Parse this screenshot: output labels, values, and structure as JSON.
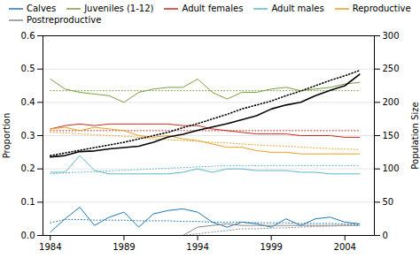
{
  "chart_data": {
    "type": "line",
    "x": [
      1984,
      1985,
      1986,
      1987,
      1988,
      1989,
      1990,
      1991,
      1992,
      1993,
      1994,
      1995,
      1996,
      1997,
      1998,
      1999,
      2000,
      2001,
      2002,
      2003,
      2004,
      2005
    ],
    "xlim": [
      1983.5,
      2006.0
    ],
    "xticks": [
      1984,
      1989,
      1994,
      1999,
      2004
    ],
    "ylim": [
      0.0,
      0.6
    ],
    "yticks": [
      {
        "value": 0.0,
        "label": "0.0"
      },
      0.1,
      0.2,
      0.3,
      0.4,
      0.5,
      0.6
    ],
    "y2lim": [
      0,
      300
    ],
    "y2ticks": [
      0,
      50,
      100,
      150,
      200,
      250,
      300
    ],
    "ylabel": "Proportion",
    "y2label": "Population Size",
    "grid": true,
    "legend": "upper-left",
    "series": [
      {
        "name": "Calves",
        "color": "#1F77B4",
        "line_style": "solid",
        "values": [
          0.01,
          0.05,
          0.085,
          0.03,
          0.055,
          0.07,
          0.025,
          0.065,
          0.075,
          0.08,
          0.07,
          0.04,
          0.025,
          0.04,
          0.035,
          0.025,
          0.05,
          0.03,
          0.05,
          0.055,
          0.04,
          0.035
        ]
      },
      {
        "name": "Calves",
        "color": "#1F77B4",
        "line_style": "dotted",
        "values": [
          0.038,
          0.048,
          0.048,
          0.046,
          0.046,
          0.046,
          0.044,
          0.044,
          0.044,
          0.042,
          0.042,
          0.04,
          0.04,
          0.04,
          0.038,
          0.038,
          0.038,
          0.036,
          0.036,
          0.036,
          0.034,
          0.034
        ]
      },
      {
        "name": "Juveniles (1-12)",
        "color": "#7B9E3D",
        "line_style": "solid",
        "values": [
          0.47,
          0.44,
          0.43,
          0.425,
          0.42,
          0.4,
          0.43,
          0.44,
          0.445,
          0.445,
          0.47,
          0.43,
          0.41,
          0.43,
          0.43,
          0.44,
          0.445,
          0.435,
          0.44,
          0.445,
          0.455,
          0.46
        ]
      },
      {
        "name": "Juveniles (1-12)",
        "color": "#7B9E3D",
        "line_style": "dotted",
        "values": [
          0.435,
          0.435,
          0.435,
          0.435,
          0.435,
          0.435,
          0.435,
          0.435,
          0.435,
          0.435,
          0.435,
          0.435,
          0.435,
          0.435,
          0.435,
          0.435,
          0.435,
          0.435,
          0.435,
          0.435,
          0.435,
          0.435
        ]
      },
      {
        "name": "Adult females",
        "color": "#CC2A1A",
        "line_style": "solid",
        "values": [
          0.32,
          0.33,
          0.335,
          0.33,
          0.335,
          0.335,
          0.335,
          0.335,
          0.335,
          0.33,
          0.33,
          0.32,
          0.315,
          0.31,
          0.305,
          0.305,
          0.305,
          0.3,
          0.3,
          0.3,
          0.295,
          0.295
        ]
      },
      {
        "name": "Adult females",
        "color": "#CC2A1A",
        "line_style": "dotted",
        "values": [
          0.315,
          0.315,
          0.315,
          0.315,
          0.315,
          0.315,
          0.315,
          0.315,
          0.315,
          0.315,
          0.315,
          0.315,
          0.315,
          0.315,
          0.315,
          0.315,
          0.315,
          0.315,
          0.315,
          0.315,
          0.315,
          0.315
        ]
      },
      {
        "name": "Adult males",
        "color": "#5BB8C8",
        "line_style": "solid",
        "values": [
          0.19,
          0.19,
          0.24,
          0.195,
          0.185,
          0.185,
          0.185,
          0.185,
          0.185,
          0.19,
          0.2,
          0.19,
          0.2,
          0.2,
          0.195,
          0.195,
          0.195,
          0.19,
          0.19,
          0.185,
          0.185,
          0.185
        ]
      },
      {
        "name": "Adult males",
        "color": "#5BB8C8",
        "line_style": "dotted",
        "values": [
          0.185,
          0.188,
          0.19,
          0.192,
          0.194,
          0.196,
          0.198,
          0.2,
          0.202,
          0.204,
          0.206,
          0.208,
          0.21,
          0.21,
          0.21,
          0.21,
          0.21,
          0.21,
          0.21,
          0.21,
          0.21,
          0.21
        ]
      },
      {
        "name": "Reproductive",
        "color": "#E8A020",
        "line_style": "solid",
        "values": [
          0.32,
          0.325,
          0.315,
          0.325,
          0.32,
          0.315,
          0.3,
          0.295,
          0.3,
          0.29,
          0.285,
          0.275,
          0.265,
          0.265,
          0.255,
          0.25,
          0.25,
          0.245,
          0.245,
          0.245,
          0.245,
          0.245
        ]
      },
      {
        "name": "Reproductive",
        "color": "#E8A020",
        "line_style": "dotted",
        "values": [
          0.31,
          0.308,
          0.305,
          0.303,
          0.3,
          0.298,
          0.295,
          0.29,
          0.288,
          0.285,
          0.283,
          0.28,
          0.278,
          0.275,
          0.272,
          0.27,
          0.268,
          0.266,
          0.263,
          0.261,
          0.26,
          0.258
        ]
      },
      {
        "name": "Postreproductive",
        "color": "#888888",
        "line_style": "solid",
        "values": [
          0.0,
          0.0,
          0.0,
          0.0,
          0.0,
          0.0,
          0.0,
          0.0,
          0.0,
          0.0,
          0.025,
          0.03,
          0.035,
          0.03,
          0.03,
          0.03,
          0.03,
          0.03,
          0.03,
          0.03,
          0.03,
          0.03
        ]
      },
      {
        "name": "Postreproductive",
        "color": "#888888",
        "line_style": "dotted",
        "values": [
          0.0,
          0.0,
          0.0,
          0.0,
          0.0,
          0.0,
          0.0,
          0.0,
          0.0,
          0.0,
          0.005,
          0.01,
          0.015,
          0.02,
          0.02,
          0.022,
          0.023,
          0.025,
          0.027,
          0.028,
          0.03,
          0.032
        ]
      },
      {
        "color": "#000000",
        "line_style": "solid",
        "axis": "y2",
        "values": [
          118,
          120,
          126,
          127,
          130,
          132,
          134,
          140,
          148,
          152,
          158,
          163,
          168,
          174,
          180,
          190,
          196,
          200,
          210,
          218,
          225,
          242
        ]
      },
      {
        "color": "#000000",
        "line_style": "dotted",
        "axis": "y2",
        "values": [
          120,
          124,
          128,
          132,
          136,
          140,
          145,
          150,
          155,
          162,
          168,
          175,
          182,
          190,
          196,
          202,
          210,
          217,
          225,
          233,
          240,
          248
        ]
      }
    ]
  }
}
